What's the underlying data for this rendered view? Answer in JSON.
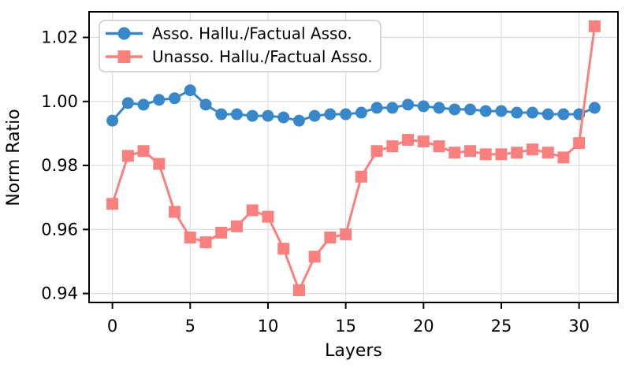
{
  "figure": {
    "background": "#ffffff",
    "grid_color": "#dcdcdc",
    "axis_color": "#000000",
    "legend_border_color": "#cccccc"
  },
  "chart_data": {
    "type": "line",
    "title": "",
    "xlabel": "Layers",
    "ylabel": "Norm Ratio",
    "x": [
      0,
      1,
      2,
      3,
      4,
      5,
      6,
      7,
      8,
      9,
      10,
      11,
      12,
      13,
      14,
      15,
      16,
      17,
      18,
      19,
      20,
      21,
      22,
      23,
      24,
      25,
      26,
      27,
      28,
      29,
      30,
      31
    ],
    "xticks": [
      0,
      5,
      10,
      15,
      20,
      25,
      30
    ],
    "xtick_labels": [
      "0",
      "5",
      "10",
      "15",
      "20",
      "25",
      "30"
    ],
    "yticks": [
      0.94,
      0.96,
      0.98,
      1.0,
      1.02
    ],
    "ytick_labels": [
      "0.94",
      "0.96",
      "0.98",
      "1.00",
      "1.02"
    ],
    "xlim": [
      -1.5,
      32.5
    ],
    "ylim": [
      0.9372,
      1.028
    ],
    "grid": true,
    "legend_position": "upper-left",
    "series": [
      {
        "name": "Asso. Hallu./Factual Asso.",
        "color": "#3887c9",
        "marker": "circle",
        "values": [
          0.994,
          0.9995,
          0.999,
          1.0005,
          1.001,
          1.0035,
          0.999,
          0.996,
          0.996,
          0.9955,
          0.9955,
          0.995,
          0.994,
          0.9955,
          0.996,
          0.996,
          0.9965,
          0.998,
          0.998,
          0.999,
          0.9985,
          0.998,
          0.9975,
          0.9975,
          0.997,
          0.997,
          0.9965,
          0.9965,
          0.996,
          0.996,
          0.996,
          0.998
        ]
      },
      {
        "name": "Unasso. Hallu./Factual Asso.",
        "color": "#fa8080",
        "marker": "square",
        "values": [
          0.968,
          0.983,
          0.9845,
          0.9805,
          0.9655,
          0.9575,
          0.956,
          0.959,
          0.961,
          0.966,
          0.964,
          0.954,
          0.941,
          0.9515,
          0.9575,
          0.9585,
          0.9765,
          0.9845,
          0.986,
          0.988,
          0.9875,
          0.986,
          0.984,
          0.9845,
          0.9835,
          0.9835,
          0.984,
          0.985,
          0.984,
          0.9825,
          0.987,
          1.0235
        ]
      }
    ]
  }
}
